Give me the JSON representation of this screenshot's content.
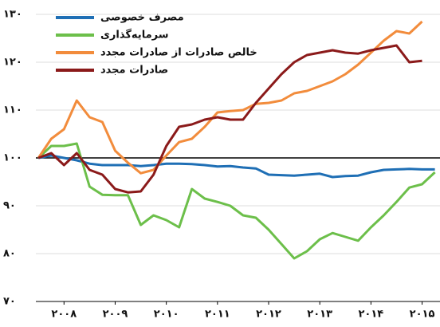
{
  "chart_data": {
    "type": "line",
    "x": [
      2008,
      2008.25,
      2008.5,
      2008.75,
      2009,
      2009.25,
      2009.5,
      2009.75,
      2010,
      2010.25,
      2010.5,
      2010.75,
      2011,
      2011.25,
      2011.5,
      2011.75,
      2012,
      2012.25,
      2012.5,
      2012.75,
      2013,
      2013.25,
      2013.5,
      2013.75,
      2014,
      2014.25,
      2014.5,
      2014.75,
      2015,
      2015.25,
      2015.5,
      2015.75
    ],
    "series": [
      {
        "name": "مصرف خصوصی",
        "color": "#1f6fb5",
        "values": [
          100,
          100.5,
          100,
          99.5,
          98.8,
          98.5,
          98.5,
          98.5,
          98.3,
          98.5,
          98.8,
          98.8,
          98.7,
          98.5,
          98.2,
          98.3,
          98,
          97.8,
          96.5,
          96.4,
          96.3,
          96.5,
          96.7,
          96,
          96.2,
          96.3,
          97,
          97.5,
          97.6,
          97.7,
          97.6,
          97.6
        ]
      },
      {
        "name": "سرمایه‌گذاری",
        "color": "#6cbf4a",
        "values": [
          100,
          102.5,
          102.5,
          103,
          94,
          92.3,
          92.2,
          92.2,
          86,
          88,
          87,
          85.5,
          93.5,
          91.5,
          90.8,
          90,
          88,
          87.5,
          85,
          82,
          79,
          80.5,
          83,
          84.3,
          83.5,
          82.7,
          85.5,
          88,
          90.8,
          93.8,
          94.5,
          97
        ]
      },
      {
        "name": "خالص صادرات از صادرات مجدد",
        "color": "#f28c3c",
        "values": [
          100,
          104,
          106,
          112,
          108.5,
          107.5,
          101.5,
          99,
          96.8,
          97.5,
          100.5,
          103.3,
          104,
          106.5,
          109.5,
          109.8,
          110,
          111.3,
          111.5,
          112,
          113.5,
          114,
          115,
          116,
          117.5,
          119.5,
          122,
          124.5,
          126.5,
          126,
          128.5,
          null
        ]
      },
      {
        "name": "صادرات مجدد",
        "color": "#8b1a1a",
        "values": [
          100,
          101,
          98.5,
          101,
          97.5,
          96.5,
          93.5,
          92.8,
          93,
          96.5,
          102.5,
          106.5,
          107,
          108,
          108.5,
          108,
          108,
          111.5,
          114.5,
          117.5,
          120,
          121.5,
          122,
          122.5,
          122,
          121.8,
          122.5,
          123,
          123.5,
          120,
          120.3,
          null
        ]
      }
    ],
    "xlim": [
      2007.95,
      2015.85
    ],
    "xticks": [
      {
        "value": 2008.5,
        "label": "۲۰۰۸"
      },
      {
        "value": 2009.5,
        "label": "۲۰۰۹"
      },
      {
        "value": 2010.5,
        "label": "۲۰۱۰"
      },
      {
        "value": 2011.5,
        "label": "۲۰۱۱"
      },
      {
        "value": 2012.5,
        "label": "۲۰۱۲"
      },
      {
        "value": 2013.5,
        "label": "۲۰۱۳"
      },
      {
        "value": 2014.5,
        "label": "۲۰۱۴"
      },
      {
        "value": 2015.5,
        "label": "۲۰۱۵"
      }
    ],
    "ylim": [
      70,
      130
    ],
    "yticks": [
      {
        "value": 70,
        "label": "۷۰"
      },
      {
        "value": 80,
        "label": "۸۰"
      },
      {
        "value": 90,
        "label": "۹۰"
      },
      {
        "value": 100,
        "label": "۱۰۰"
      },
      {
        "value": 110,
        "label": "۱۱۰"
      },
      {
        "value": 120,
        "label": "۱۲۰"
      },
      {
        "value": 130,
        "label": "۱۳۰"
      }
    ],
    "grid": true
  }
}
